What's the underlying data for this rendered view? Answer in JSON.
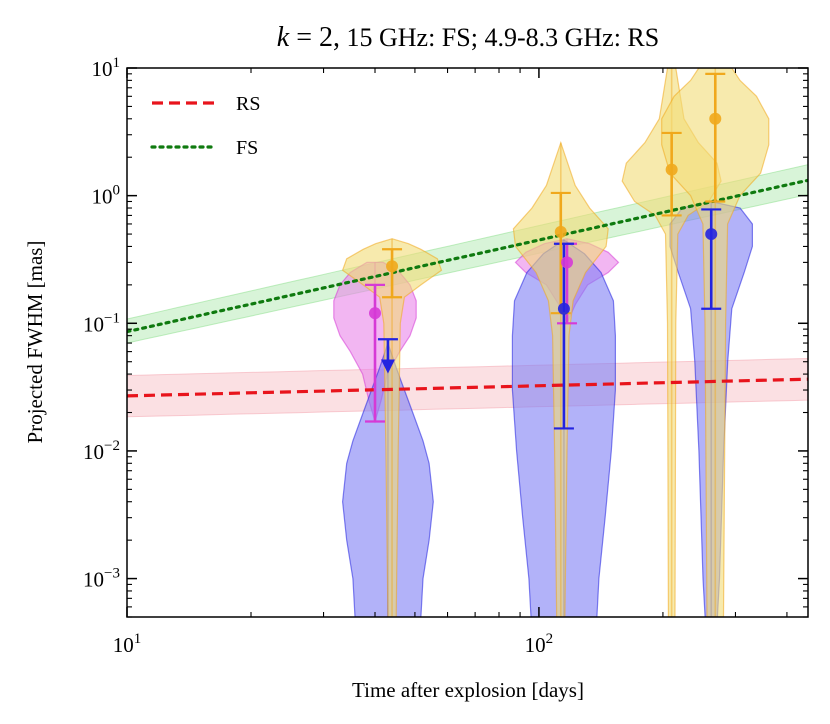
{
  "chart_data": {
    "type": "violin",
    "title": "k = 2, 15 GHz: FS;  4.9-8.3 GHz: RS",
    "title_parts": {
      "k": "k",
      "eq": " = 2,",
      "rest": " 15 GHz: FS;  4.9-8.3 GHz: RS"
    },
    "xlabel": "Time after explosion [days]",
    "ylabel": "Projected FWHM [mas]",
    "xscale": "log",
    "yscale": "log",
    "xlim": [
      10,
      450
    ],
    "ylim": [
      0.0005,
      10
    ],
    "x_ticks": [
      {
        "value": 10,
        "base": "10",
        "exp": "1"
      },
      {
        "value": 100,
        "base": "10",
        "exp": "2"
      }
    ],
    "y_ticks": [
      {
        "value": 0.001,
        "base": "10",
        "exp": "−3"
      },
      {
        "value": 0.01,
        "base": "10",
        "exp": "−2"
      },
      {
        "value": 0.1,
        "base": "10",
        "exp": "−1"
      },
      {
        "value": 1,
        "base": "10",
        "exp": "0"
      },
      {
        "value": 10,
        "base": "10",
        "exp": "1"
      }
    ],
    "legend": {
      "placement": "upper-left",
      "entries": [
        {
          "label": "RS",
          "color": "#e8141c",
          "style": "dashed"
        },
        {
          "label": "FS",
          "color": "#0f7a0f",
          "style": "dotted"
        }
      ]
    },
    "model_lines": [
      {
        "name": "RS",
        "color": "#e8141c",
        "band_color": "#f4a6b0",
        "style": "dashed",
        "x": [
          10,
          450
        ],
        "y": [
          0.027,
          0.0365
        ],
        "y_lo": [
          0.0185,
          0.025
        ],
        "y_hi": [
          0.039,
          0.053
        ]
      },
      {
        "name": "FS",
        "color": "#0f7a0f",
        "band_color": "#8fe08f",
        "style": "dotted",
        "x": [
          10,
          450
        ],
        "y": [
          0.086,
          1.32
        ],
        "y_lo": [
          0.07,
          1.02
        ],
        "y_hi": [
          0.108,
          1.75
        ]
      }
    ],
    "series": [
      {
        "name": "magenta",
        "color": "#d63ad6",
        "fill": "#e985e9",
        "points": [
          {
            "day": 40,
            "median": 0.12,
            "lo": 0.017,
            "hi": 0.2,
            "type": "point",
            "violin": [
              [
                0.017,
                0.0
              ],
              [
                0.025,
                0.015
              ],
              [
                0.04,
                0.03
              ],
              [
                0.06,
                0.06
              ],
              [
                0.08,
                0.085
              ],
              [
                0.11,
                0.1
              ],
              [
                0.15,
                0.1
              ],
              [
                0.2,
                0.085
              ],
              [
                0.25,
                0.06
              ],
              [
                0.3,
                0.02
              ]
            ]
          },
          {
            "day": 117,
            "median": 0.3,
            "lo": 0.1,
            "hi": 0.42,
            "type": "point",
            "violin": [
              [
                0.1,
                0.0
              ],
              [
                0.14,
                0.02
              ],
              [
                0.2,
                0.05
              ],
              [
                0.25,
                0.1
              ],
              [
                0.3,
                0.125
              ],
              [
                0.36,
                0.1
              ],
              [
                0.42,
                0.055
              ],
              [
                0.46,
                0.0
              ]
            ]
          }
        ]
      },
      {
        "name": "blue",
        "color": "#2323e0",
        "fill": "#7f7ff5",
        "points": [
          {
            "day": 43,
            "median": 0.045,
            "lo": null,
            "hi": 0.075,
            "type": "upper_limit",
            "violin": [
              [
                0.0005,
                0.08
              ],
              [
                0.001,
                0.085
              ],
              [
                0.002,
                0.1
              ],
              [
                0.004,
                0.11
              ],
              [
                0.008,
                0.1
              ],
              [
                0.012,
                0.085
              ],
              [
                0.02,
                0.06
              ],
              [
                0.03,
                0.04
              ],
              [
                0.045,
                0.02
              ],
              [
                0.07,
                0.0
              ]
            ]
          },
          {
            "day": 115,
            "median": 0.13,
            "lo": 0.015,
            "hi": 0.42,
            "type": "point",
            "violin": [
              [
                0.0005,
                0.08
              ],
              [
                0.001,
                0.085
              ],
              [
                0.003,
                0.1
              ],
              [
                0.01,
                0.115
              ],
              [
                0.03,
                0.125
              ],
              [
                0.08,
                0.125
              ],
              [
                0.15,
                0.12
              ],
              [
                0.25,
                0.09
              ],
              [
                0.35,
                0.05
              ],
              [
                0.45,
                0.0
              ]
            ]
          },
          {
            "day": 262,
            "median": 0.5,
            "lo": 0.13,
            "hi": 0.78,
            "type": "point",
            "violin": [
              [
                0.0005,
                0.015
              ],
              [
                0.001,
                0.02
              ],
              [
                0.01,
                0.03
              ],
              [
                0.05,
                0.04
              ],
              [
                0.13,
                0.05
              ],
              [
                0.25,
                0.08
              ],
              [
                0.4,
                0.1
              ],
              [
                0.6,
                0.1
              ],
              [
                0.8,
                0.07
              ],
              [
                0.9,
                0.0
              ]
            ]
          }
        ]
      },
      {
        "name": "gold",
        "color": "#f0a81c",
        "fill": "#f1dc76",
        "points": [
          {
            "day": 44,
            "median": 0.28,
            "lo": 0.16,
            "hi": 0.38,
            "type": "point",
            "violin": [
              [
                0.0005,
                0.01
              ],
              [
                0.01,
                0.015
              ],
              [
                0.1,
                0.02
              ],
              [
                0.16,
                0.03
              ],
              [
                0.2,
                0.07
              ],
              [
                0.26,
                0.12
              ],
              [
                0.32,
                0.11
              ],
              [
                0.38,
                0.07
              ],
              [
                0.42,
                0.04
              ],
              [
                0.46,
                0.0
              ]
            ]
          },
          {
            "day": 113,
            "median": 0.52,
            "lo": 0.12,
            "hi": 1.05,
            "type": "point",
            "violin": [
              [
                0.0005,
                0.01
              ],
              [
                0.01,
                0.015
              ],
              [
                0.08,
                0.02
              ],
              [
                0.15,
                0.03
              ],
              [
                0.25,
                0.06
              ],
              [
                0.4,
                0.11
              ],
              [
                0.55,
                0.115
              ],
              [
                0.8,
                0.07
              ],
              [
                1.2,
                0.035
              ],
              [
                2.6,
                0.0
              ]
            ]
          },
          {
            "day": 210,
            "median": 1.6,
            "lo": 0.7,
            "hi": 3.1,
            "type": "point",
            "violin": [
              [
                0.0005,
                0.008
              ],
              [
                0.1,
                0.01
              ],
              [
                0.5,
                0.015
              ],
              [
                0.7,
                0.04
              ],
              [
                0.9,
                0.09
              ],
              [
                1.3,
                0.12
              ],
              [
                1.8,
                0.11
              ],
              [
                2.6,
                0.065
              ],
              [
                4.0,
                0.03
              ],
              [
                10,
                0.01
              ]
            ]
          },
          {
            "day": 268,
            "median": 4.0,
            "lo": 0.9,
            "hi": 9.0,
            "type": "point",
            "violin": [
              [
                0.0005,
                0.02
              ],
              [
                0.1,
                0.025
              ],
              [
                0.6,
                0.03
              ],
              [
                1.0,
                0.06
              ],
              [
                1.5,
                0.11
              ],
              [
                2.5,
                0.13
              ],
              [
                4.0,
                0.13
              ],
              [
                6.0,
                0.1
              ],
              [
                8.0,
                0.06
              ],
              [
                10,
                0.04
              ]
            ]
          }
        ]
      }
    ]
  }
}
